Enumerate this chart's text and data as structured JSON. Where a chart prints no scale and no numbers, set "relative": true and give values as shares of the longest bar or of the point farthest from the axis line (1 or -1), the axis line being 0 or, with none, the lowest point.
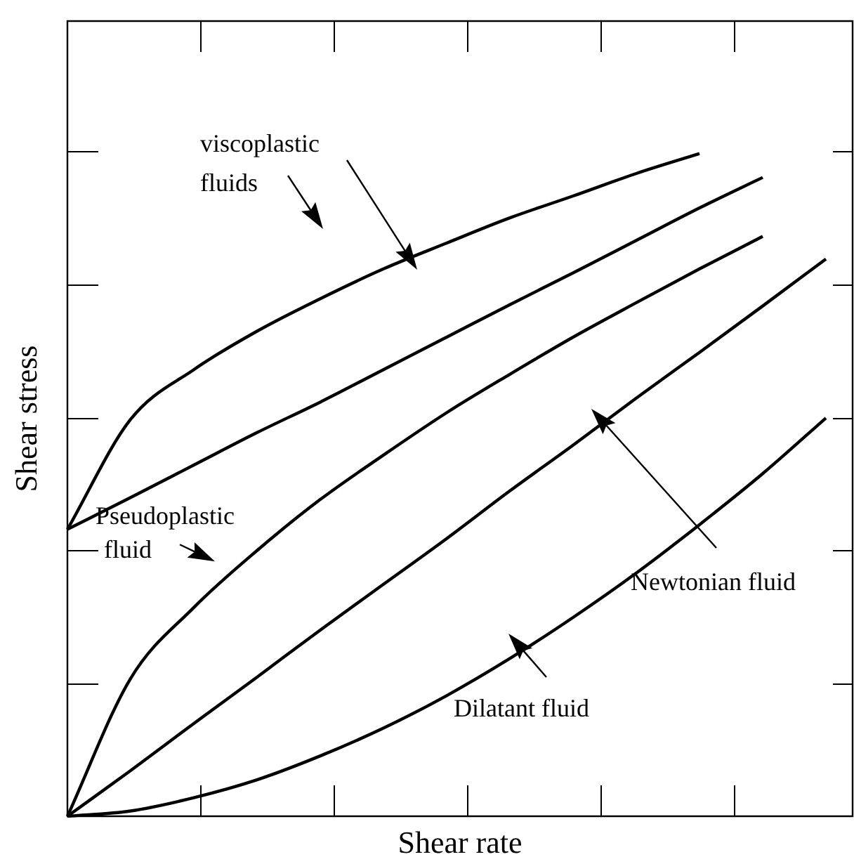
{
  "chart_data": {
    "type": "line",
    "relative": true,
    "xlabel": "Shear rate",
    "ylabel": "Shear stress",
    "marker": "none",
    "line_style": "solid",
    "annotations": [
      "viscoplastic fluids",
      "Pseudoplastic fluid",
      "Newtonian fluid",
      "Dilatant fluid"
    ],
    "categories": [
      null,
      null,
      null,
      null,
      null,
      null,
      null,
      null,
      null,
      null,
      null,
      null,
      null
    ],
    "series": [
      {
        "color": "#000000",
        "values": [
          0.433,
          0.599,
          0.674,
          0.732,
          0.781,
          0.826,
          0.865,
          0.903,
          0.936,
          0.97,
          1,
          null,
          null
        ]
      },
      {
        "color": "#000000",
        "values": [
          0.433,
          0.481,
          0.53,
          0.579,
          0.625,
          0.674,
          0.723,
          0.772,
          0.82,
          0.869,
          0.918,
          0.964,
          null
        ]
      },
      {
        "color": "#000000",
        "values": [
          0,
          0.208,
          0.315,
          0.401,
          0.478,
          0.545,
          0.609,
          0.667,
          0.723,
          0.775,
          0.826,
          0.875,
          null
        ]
      },
      {
        "color": "#000000",
        "values": [
          0,
          0.069,
          0.14,
          0.21,
          0.281,
          0.35,
          0.419,
          0.491,
          0.56,
          0.631,
          0.7,
          0.77,
          0.841
        ]
      },
      {
        "color": "#000000",
        "values": [
          0,
          0.008,
          0.028,
          0.055,
          0.091,
          0.133,
          0.182,
          0.238,
          0.3,
          0.367,
          0.44,
          0.517,
          0.601
        ]
      }
    ]
  }
}
